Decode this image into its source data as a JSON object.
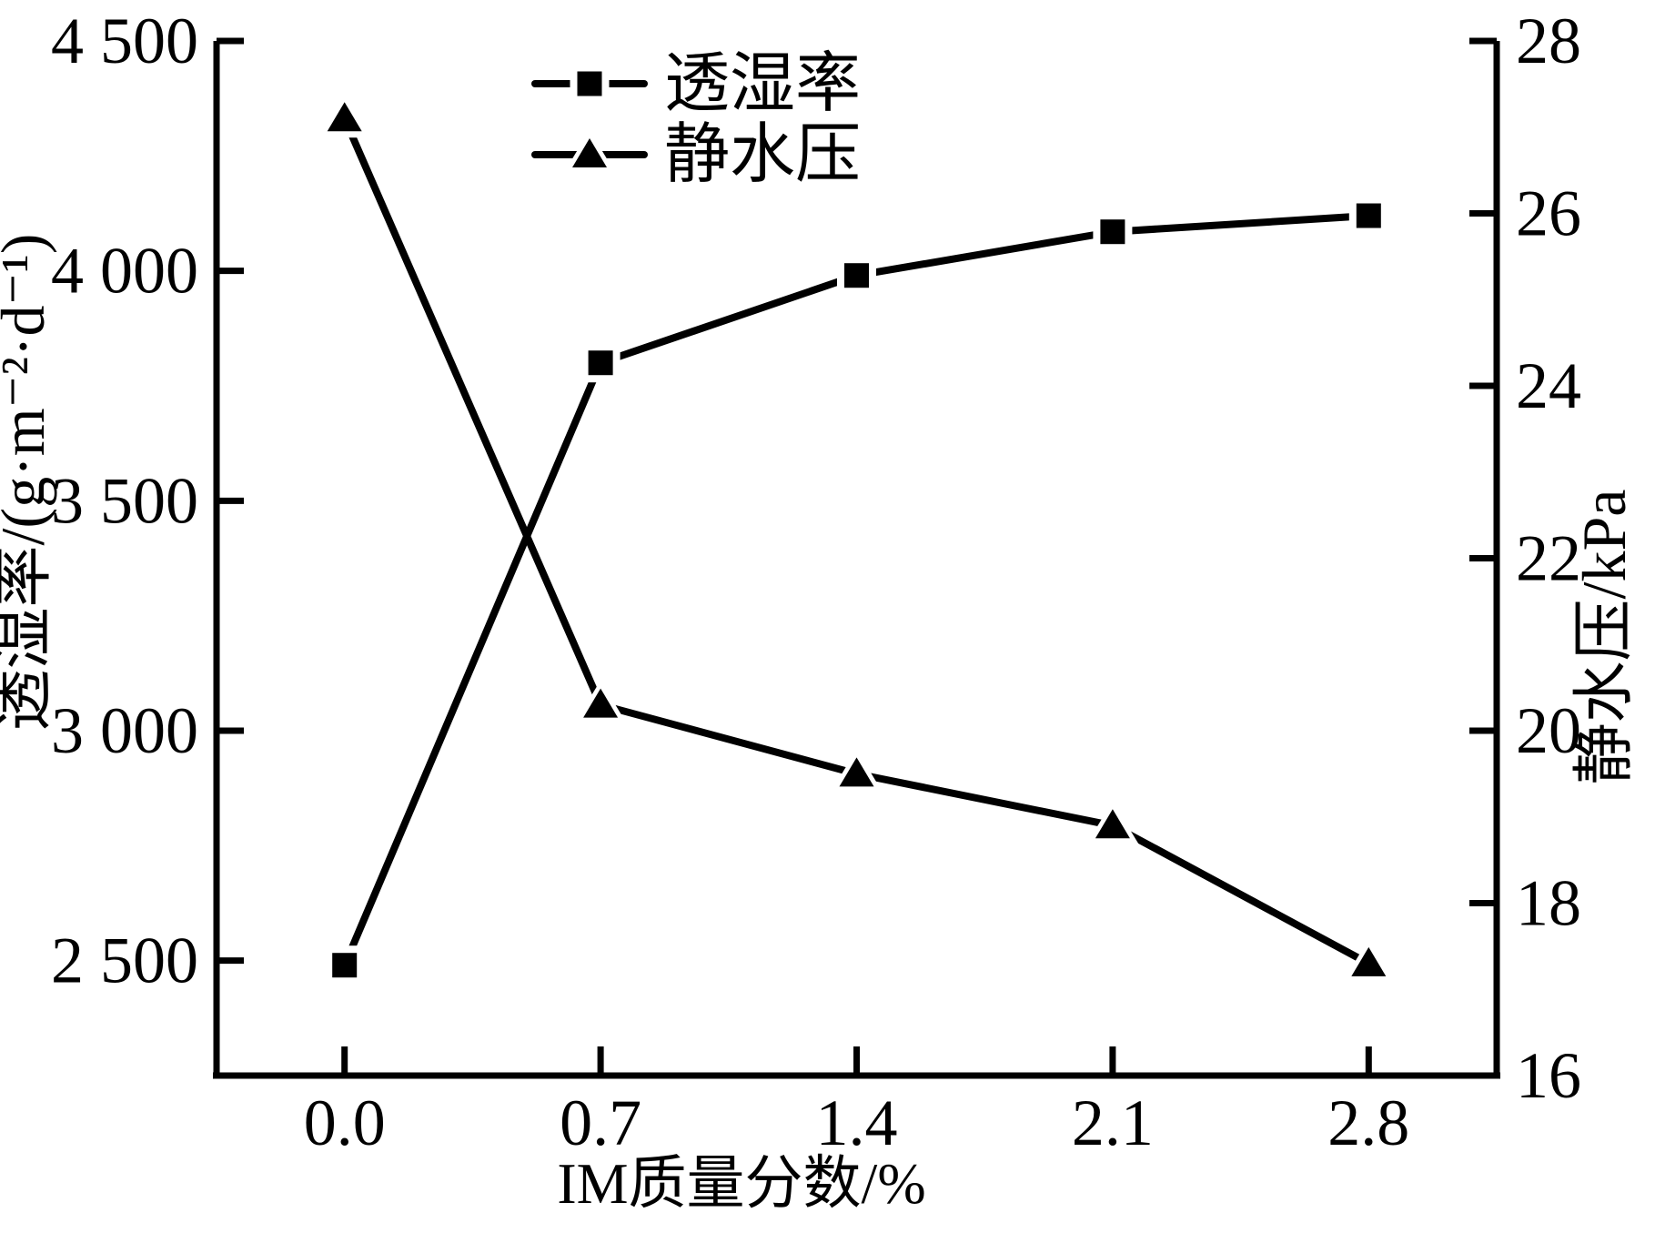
{
  "chart_data": {
    "type": "line",
    "x": [
      0.0,
      0.7,
      1.4,
      2.1,
      2.8
    ],
    "x_tick_labels": [
      "0.0",
      "0.7",
      "1.4",
      "2.1",
      "2.8"
    ],
    "xlabel": "IM质量分数/%",
    "xlim": [
      -0.35,
      3.15
    ],
    "grid": false,
    "background": "#ffffff",
    "line_color": "#000000",
    "left_axis": {
      "label": "透湿率/(g·m⁻²·d⁻¹)",
      "ticks": [
        2500,
        3000,
        3500,
        4000,
        4500
      ],
      "tick_labels": [
        "2 500",
        "3 000",
        "3 500",
        "4 000",
        "4 500"
      ],
      "lim": [
        2250,
        4500
      ]
    },
    "right_axis": {
      "label": "静水压/kPa",
      "ticks": [
        16,
        18,
        20,
        22,
        24,
        26,
        28
      ],
      "tick_labels": [
        "16",
        "18",
        "20",
        "22",
        "24",
        "26",
        "28"
      ],
      "lim": [
        16,
        28
      ]
    },
    "series": [
      {
        "name": "透湿率",
        "axis": "left",
        "marker": "square",
        "color": "#000000",
        "values": [
          2490,
          3800,
          3990,
          4085,
          4120
        ]
      },
      {
        "name": "静水压",
        "axis": "right",
        "marker": "triangle",
        "color": "#000000",
        "values": [
          27.1,
          20.3,
          19.5,
          18.9,
          17.3
        ]
      }
    ],
    "legend": {
      "position": "upper left center",
      "entries": [
        "透湿率",
        "静水压"
      ]
    }
  }
}
